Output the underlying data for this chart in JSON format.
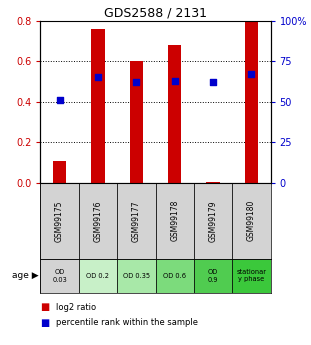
{
  "title": "GDS2588 / 2131",
  "samples": [
    "GSM99175",
    "GSM99176",
    "GSM99177",
    "GSM99178",
    "GSM99179",
    "GSM99180"
  ],
  "log2_ratio": [
    0.11,
    0.76,
    0.6,
    0.68,
    0.005,
    0.8
  ],
  "percentile_rank_pct": [
    51,
    65,
    62,
    63,
    62,
    67
  ],
  "ylim_left": [
    0,
    0.8
  ],
  "ylim_right": [
    0,
    100
  ],
  "yticks_left": [
    0,
    0.2,
    0.4,
    0.6,
    0.8
  ],
  "yticks_right": [
    0,
    25,
    50,
    75,
    100
  ],
  "bar_color": "#cc0000",
  "dot_color": "#0000cc",
  "left_tick_color": "#cc0000",
  "right_tick_color": "#0000cc",
  "grid_color": "#000000",
  "age_labels": [
    "OD\n0.03",
    "OD 0.2",
    "OD 0.35",
    "OD 0.6",
    "OD\n0.9",
    "stationar\ny phase"
  ],
  "age_bg_colors": [
    "#d3d3d3",
    "#c8f0c8",
    "#a8e8a8",
    "#7cdb7c",
    "#50cc50",
    "#3bc83b"
  ],
  "sample_bg_color": "#d3d3d3",
  "bar_width": 0.35,
  "legend_labels": [
    "log2 ratio",
    "percentile rank within the sample"
  ]
}
